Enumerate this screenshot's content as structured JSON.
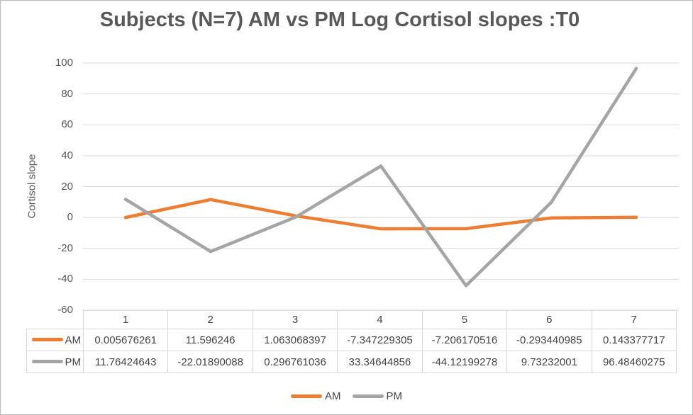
{
  "chart_data": {
    "type": "line",
    "title": "Subjects (N=7) AM vs PM Log Cortisol slopes :T0",
    "ylabel": "Cortisol slope",
    "xlabel": "",
    "categories": [
      "1",
      "2",
      "3",
      "4",
      "5",
      "6",
      "7"
    ],
    "series": [
      {
        "name": "AM",
        "color": "#ED7D31",
        "values": [
          0.005676261,
          11.596246,
          1.063068397,
          -7.347229305,
          -7.206170516,
          -0.293440985,
          0.143377717
        ],
        "labels": [
          "0.005676261",
          "11.596246",
          "1.063068397",
          "-7.347229305",
          "-7.206170516",
          "-0.293440985",
          "0.143377717"
        ]
      },
      {
        "name": "PM",
        "color": "#A5A5A5",
        "values": [
          11.76424643,
          -22.01890088,
          0.296761036,
          33.34644856,
          -44.12199278,
          9.73232001,
          96.48460275
        ],
        "labels": [
          "11.76424643",
          "-22.01890088",
          "0.296761036",
          "33.34644856",
          "-44.12199278",
          "9.73232001",
          "96.48460275"
        ]
      }
    ],
    "ylim": [
      -60,
      100
    ],
    "yticks": [
      -60,
      -40,
      -20,
      0,
      20,
      40,
      60,
      80,
      100
    ],
    "grid": true,
    "gridline_color": "#D9D9D9",
    "axis_text_color": "#595959",
    "legend_position": "bottom",
    "data_table_shown": true
  }
}
